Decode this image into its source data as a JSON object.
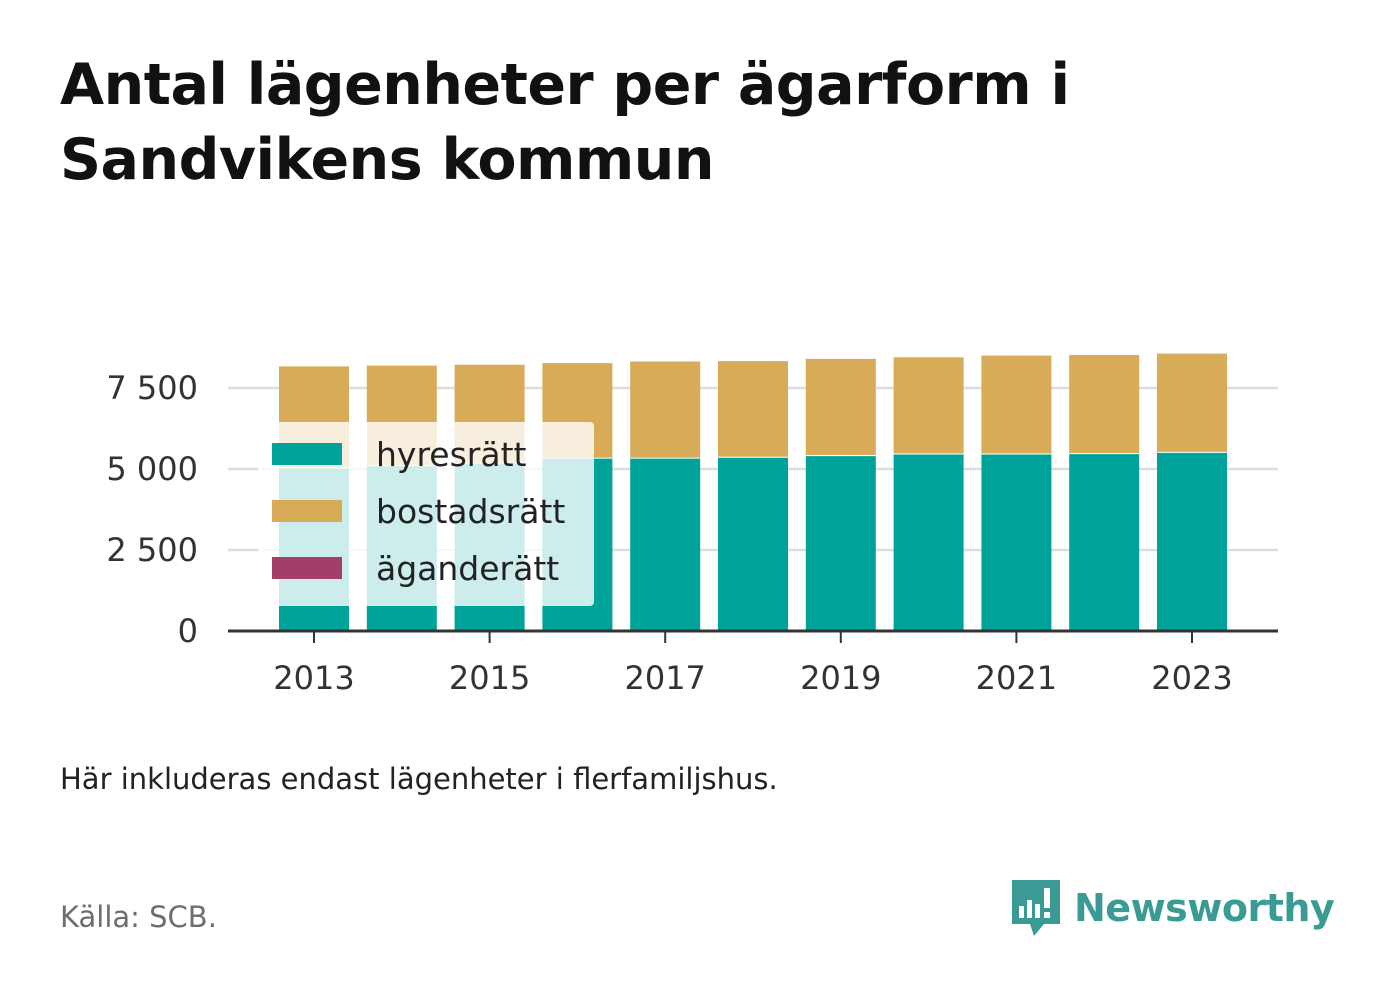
{
  "title": "Antal lägenheter per ägarform i Sandvikens kommun",
  "note": "Här inkluderas endast lägenheter i flerfamiljshus.",
  "source": "Källa: SCB.",
  "brand": "Newsworthy",
  "colors": {
    "hyresratt": "#00a39a",
    "bostadsratt": "#d8ab58",
    "aganderatt": "#a33e68",
    "brand": "#3a9a94",
    "grid": "#dddddd",
    "axis": "#333333"
  },
  "chart_data": {
    "type": "bar",
    "stacked": true,
    "categories": [
      "2013",
      "2014",
      "2015",
      "2016",
      "2017",
      "2018",
      "2019",
      "2020",
      "2021",
      "2022",
      "2023"
    ],
    "x_tick_labels": [
      "2013",
      "2015",
      "2017",
      "2019",
      "2021",
      "2023"
    ],
    "series": [
      {
        "name": "hyresrätt",
        "color": "#00a39a",
        "values": [
          5050,
          5120,
          5200,
          5350,
          5350,
          5380,
          5430,
          5480,
          5480,
          5490,
          5530
        ]
      },
      {
        "name": "bostadsrätt",
        "color": "#d8ab58",
        "values": [
          3150,
          3100,
          3050,
          2950,
          3000,
          2980,
          3000,
          3000,
          3050,
          3060,
          3060
        ]
      },
      {
        "name": "äganderätt",
        "color": "#a33e68",
        "values": [
          0,
          0,
          0,
          0,
          0,
          0,
          0,
          0,
          0,
          0,
          0
        ]
      }
    ],
    "y_ticks": [
      0,
      2500,
      5000,
      7500
    ],
    "y_tick_labels": [
      "0",
      "2 500",
      "5 000",
      "7 500"
    ],
    "ylim": [
      0,
      8700
    ],
    "grid": true,
    "legend_position": "top-left"
  }
}
